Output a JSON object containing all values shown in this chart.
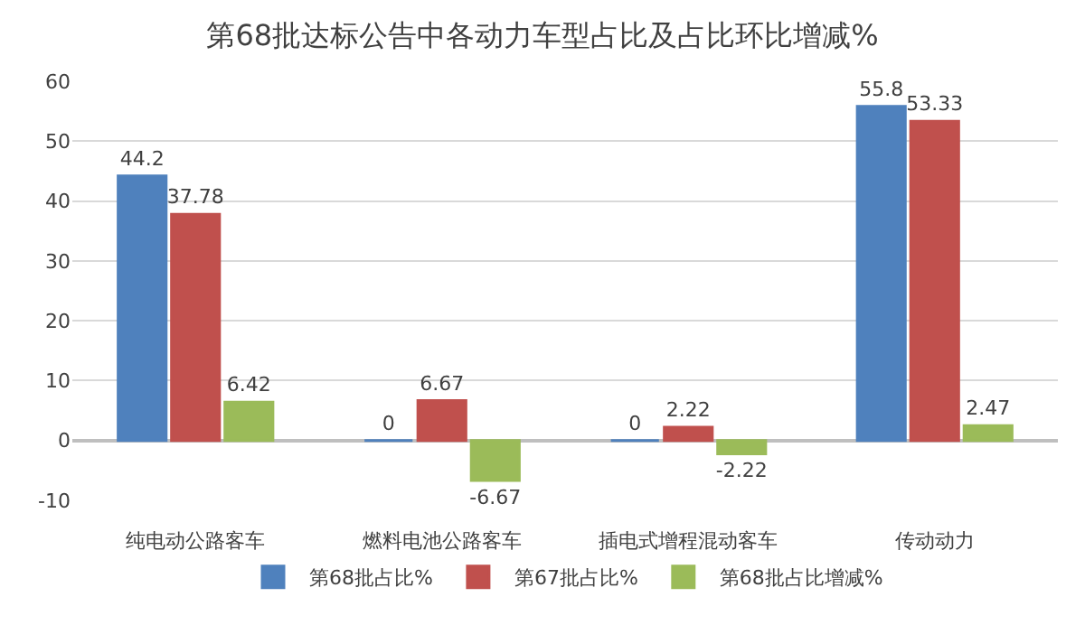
{
  "chart_data": {
    "type": "bar",
    "title": "第68批达标公告中各动力车型占比及占比环比增减%",
    "categories": [
      "纯电动公路客车",
      "燃料电池公路客车",
      "插电式增程混动客车",
      "传动动力"
    ],
    "series": [
      {
        "name": "第68批占比%",
        "color": "#4f81bd",
        "values": [
          44.2,
          0,
          0,
          55.8
        ]
      },
      {
        "name": "第67批占比%",
        "color": "#c0504d",
        "values": [
          37.78,
          6.67,
          2.22,
          53.33
        ]
      },
      {
        "name": "第68批占比增减%",
        "color": "#9bbb59",
        "values": [
          6.42,
          -6.67,
          -2.22,
          2.47
        ]
      }
    ],
    "ylim": [
      -10,
      60
    ],
    "yticks": [
      -10,
      0,
      10,
      20,
      30,
      40,
      50,
      60
    ],
    "grid": "y",
    "legend": "bottom",
    "data_labels": true
  }
}
